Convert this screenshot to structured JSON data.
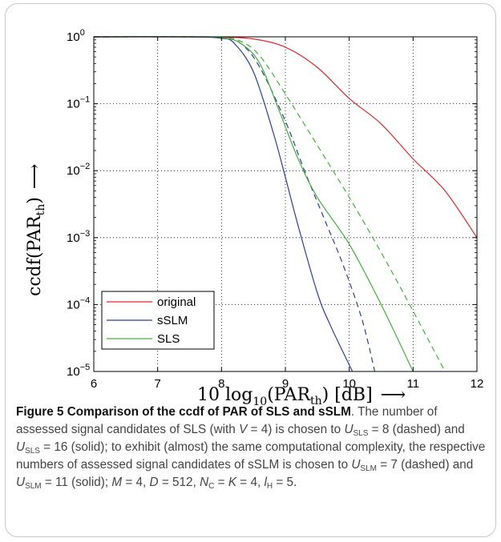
{
  "chart_data": {
    "type": "line",
    "xlabel": "10 log10(PARth) [dB] ⟶",
    "ylabel": "ccdf(PARth) ⟶",
    "xlim": [
      6,
      12
    ],
    "ylim": [
      1e-05,
      1
    ],
    "yscale": "log",
    "grid": true,
    "legend_position": "bottom-left",
    "x_ticks": [
      "6",
      "7",
      "8",
      "9",
      "10",
      "11",
      "12"
    ],
    "y_ticks": [
      {
        "base": "10",
        "exp": "0"
      },
      {
        "base": "10",
        "exp": "−1"
      },
      {
        "base": "10",
        "exp": "−2"
      },
      {
        "base": "10",
        "exp": "−3"
      },
      {
        "base": "10",
        "exp": "−4"
      },
      {
        "base": "10",
        "exp": "−5"
      }
    ],
    "legend": [
      {
        "name": "original",
        "color": "#e8262f"
      },
      {
        "name": "sSLM",
        "color": "#2c3e99"
      },
      {
        "name": "SLS",
        "color": "#43b23a"
      }
    ],
    "series": [
      {
        "name": "original",
        "color": "#e8262f",
        "style": "solid",
        "x": [
          6,
          7.5,
          8,
          8.5,
          9,
          9.5,
          10,
          10.5,
          11,
          11.5,
          12
        ],
        "y": [
          1,
          1,
          0.99,
          0.93,
          0.7,
          0.35,
          0.12,
          0.05,
          0.015,
          0.005,
          0.001
        ]
      },
      {
        "name": "sSLM",
        "color": "#2c3e99",
        "style": "solid",
        "x": [
          6,
          7.5,
          8,
          8.2,
          8.5,
          8.8,
          9,
          9.2,
          9.5,
          9.7,
          10.05
        ],
        "y": [
          1,
          1,
          0.95,
          0.8,
          0.3,
          0.04,
          0.008,
          0.0015,
          0.00015,
          5e-05,
          1e-05
        ]
      },
      {
        "name": "sSLM",
        "color": "#2c3e99",
        "style": "dashed",
        "x": [
          6,
          7.5,
          8,
          8.3,
          8.6,
          9,
          9.3,
          9.6,
          9.9,
          10.2,
          10.4
        ],
        "y": [
          1,
          1,
          0.96,
          0.8,
          0.35,
          0.055,
          0.01,
          0.002,
          0.0004,
          6e-05,
          1e-05
        ]
      },
      {
        "name": "SLS",
        "color": "#43b23a",
        "style": "solid",
        "x": [
          6,
          7.5,
          8,
          8.3,
          8.6,
          8.9,
          9.2,
          9.5,
          10,
          10.5,
          11
        ],
        "y": [
          1,
          1,
          0.97,
          0.8,
          0.4,
          0.08,
          0.015,
          0.004,
          0.0008,
          0.0001,
          1e-05
        ]
      },
      {
        "name": "SLS",
        "color": "#43b23a",
        "style": "dashed",
        "x": [
          6,
          7.5,
          8,
          8.3,
          8.6,
          9,
          9.5,
          10,
          10.5,
          11,
          11.5
        ],
        "y": [
          1,
          1,
          0.98,
          0.86,
          0.52,
          0.14,
          0.024,
          0.004,
          0.0006,
          8e-05,
          1e-05
        ]
      }
    ]
  },
  "axis_labels": {
    "x_main": "10 log",
    "x_sub": "10",
    "x_par": "(PAR",
    "x_th": "th",
    "x_tail": ") [dB]",
    "x_arrow": "⟶",
    "y_main": "ccdf(PAR",
    "y_th": "th",
    "y_close": ")",
    "y_arrow": "⟶"
  },
  "caption": {
    "figure_label": "Figure 5 Comparison of the ccdf of PAR of SLS and sSLM",
    "t1": ". The number of assessed signal candidates of SLS (with ",
    "V": "V",
    "t2": " = 4) is chosen to ",
    "U": "U",
    "SLS": "SLS",
    "t3": " = 8 (dashed) and ",
    "t4": " = 16 (solid); to exhibit (almost) the same computational complexity, the respective numbers of assessed signal candidates of sSLM is chosen to ",
    "SLM": "SLM",
    "t5": " = 7 (dashed) and ",
    "t6": " = 11 (solid); ",
    "M": "M",
    "t7": " = 4, ",
    "D": "D",
    "t8": " = 512, ",
    "N": "N",
    "C": "C",
    "t9": " = ",
    "K": "K",
    "t10": " = 4, ",
    "l": "l",
    "H": "H",
    "t11": " = 5."
  }
}
